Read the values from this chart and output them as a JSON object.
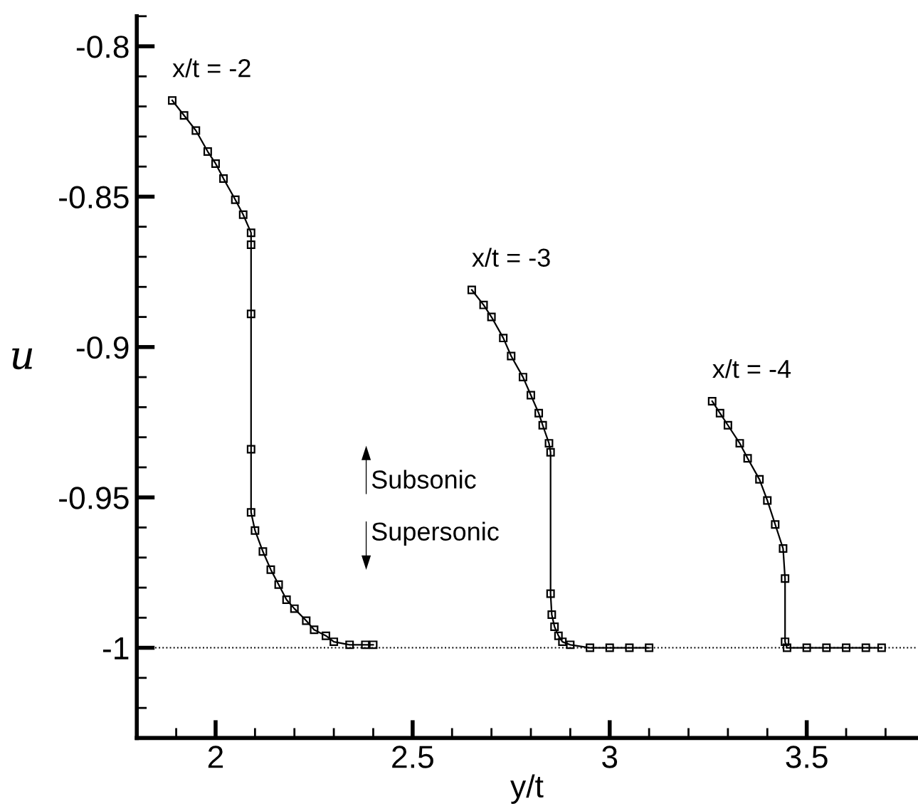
{
  "chart_data": {
    "type": "line",
    "xlabel": "y/t",
    "ylabel": "u",
    "xlim": [
      1.8,
      3.78
    ],
    "xticks": [
      2,
      2.5,
      3,
      3.5
    ],
    "ylim": [
      -1.03,
      -0.79
    ],
    "yticks": [
      -0.8,
      -0.85,
      -0.9,
      -0.95,
      -1
    ],
    "grid": false,
    "legend": false,
    "marker": "square",
    "line_style": "solid",
    "series": [
      {
        "name": "x/t = -2",
        "color": "#000000",
        "x": [
          1.89,
          1.92,
          1.95,
          1.98,
          2.0,
          2.02,
          2.05,
          2.07,
          2.09,
          2.09,
          2.09,
          2.09,
          2.09,
          2.1,
          2.12,
          2.14,
          2.16,
          2.18,
          2.2,
          2.23,
          2.25,
          2.28,
          2.3,
          2.34,
          2.38,
          2.4
        ],
        "values": [
          -0.818,
          -0.823,
          -0.828,
          -0.835,
          -0.839,
          -0.844,
          -0.851,
          -0.856,
          -0.862,
          -0.866,
          -0.889,
          -0.934,
          -0.955,
          -0.961,
          -0.968,
          -0.974,
          -0.979,
          -0.984,
          -0.987,
          -0.991,
          -0.994,
          -0.996,
          -0.998,
          -0.999,
          -0.999,
          -0.999
        ]
      },
      {
        "name": "x/t = -3",
        "color": "#000000",
        "x": [
          2.65,
          2.68,
          2.7,
          2.73,
          2.75,
          2.78,
          2.8,
          2.82,
          2.83,
          2.846,
          2.85,
          2.85,
          2.853,
          2.86,
          2.87,
          2.88,
          2.9,
          2.95,
          3.0,
          3.05,
          3.1
        ],
        "values": [
          -0.881,
          -0.886,
          -0.89,
          -0.897,
          -0.903,
          -0.91,
          -0.916,
          -0.922,
          -0.926,
          -0.932,
          -0.935,
          -0.982,
          -0.989,
          -0.993,
          -0.996,
          -0.998,
          -0.999,
          -1.0,
          -1.0,
          -1.0,
          -1.0
        ]
      },
      {
        "name": "x/t = -4",
        "color": "#000000",
        "x": [
          3.26,
          3.28,
          3.3,
          3.33,
          3.35,
          3.38,
          3.4,
          3.42,
          3.44,
          3.445,
          3.445,
          3.45,
          3.5,
          3.55,
          3.6,
          3.65,
          3.69
        ],
        "values": [
          -0.918,
          -0.922,
          -0.926,
          -0.932,
          -0.937,
          -0.944,
          -0.951,
          -0.959,
          -0.967,
          -0.977,
          -0.998,
          -1.0,
          -1.0,
          -1.0,
          -1.0,
          -1.0,
          -1.0
        ]
      }
    ],
    "ref_lines": [
      {
        "axis": "y",
        "value": -1,
        "color": "#000000",
        "line_style": "dotted"
      }
    ],
    "annotations": [
      "Subsonic",
      "Supersonic"
    ]
  }
}
